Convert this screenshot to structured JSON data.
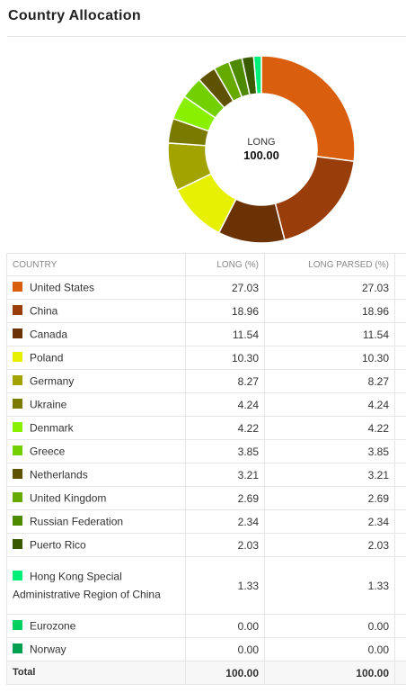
{
  "panel": {
    "title": "Country Allocation"
  },
  "table": {
    "headers": {
      "country": "COUNTRY",
      "long": "LONG (%)",
      "long_parsed": "LONG PARSED (%)"
    },
    "total": {
      "label": "Total",
      "long": "100.00",
      "long_parsed": "100.00"
    }
  },
  "chart_data": {
    "type": "pie",
    "style": "donut",
    "center_label": "LONG",
    "center_value": "100.00",
    "slices": [
      {
        "label": "United States",
        "value": 27.03,
        "parsed": "27.03",
        "display": "27.03",
        "color": "#D95F0E"
      },
      {
        "label": "China",
        "value": 18.96,
        "parsed": "18.96",
        "display": "18.96",
        "color": "#993D0A"
      },
      {
        "label": "Canada",
        "value": 11.54,
        "parsed": "11.54",
        "display": "11.54",
        "color": "#6B3205"
      },
      {
        "label": "Poland",
        "value": 10.3,
        "parsed": "10.30",
        "display": "10.30",
        "color": "#E6F000"
      },
      {
        "label": "Germany",
        "value": 8.27,
        "parsed": "8.27",
        "display": "8.27",
        "color": "#A3A300"
      },
      {
        "label": "Ukraine",
        "value": 4.24,
        "parsed": "4.24",
        "display": "4.24",
        "color": "#7A7A00"
      },
      {
        "label": "Denmark",
        "value": 4.22,
        "parsed": "4.22",
        "display": "4.22",
        "color": "#88F000"
      },
      {
        "label": "Greece",
        "value": 3.85,
        "parsed": "3.85",
        "display": "3.85",
        "color": "#73D000"
      },
      {
        "label": "Netherlands",
        "value": 3.21,
        "parsed": "3.21",
        "display": "3.21",
        "color": "#5E5200"
      },
      {
        "label": "United Kingdom",
        "value": 2.69,
        "parsed": "2.69",
        "display": "2.69",
        "color": "#66AA00"
      },
      {
        "label": "Russian Federation",
        "value": 2.34,
        "parsed": "2.34",
        "display": "2.34",
        "color": "#4E8A00"
      },
      {
        "label": "Puerto Rico",
        "value": 2.03,
        "parsed": "2.03",
        "display": "2.03",
        "color": "#3A5A00"
      },
      {
        "label": "Hong Kong Special Administrative Region of China",
        "value": 1.33,
        "parsed": "1.33",
        "display": "1.33",
        "color": "#00F07A"
      },
      {
        "label": "Eurozone",
        "value": 0.0,
        "parsed": "0.00",
        "display": "0.00",
        "color": "#00D060"
      },
      {
        "label": "Norway",
        "value": 0.0,
        "parsed": "0.00",
        "display": "0.00",
        "color": "#00A050"
      }
    ]
  }
}
